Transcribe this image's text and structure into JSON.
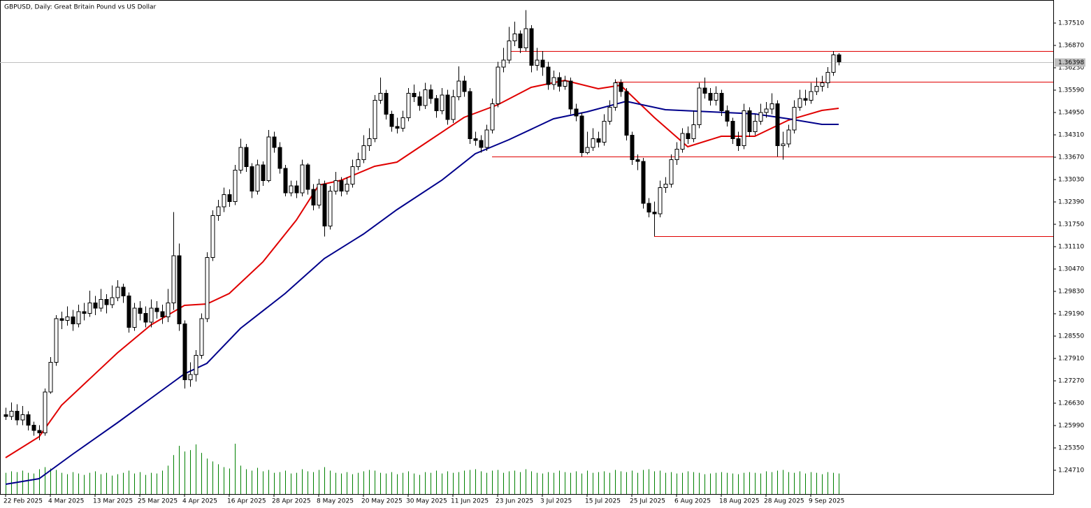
{
  "chart_data": {
    "type": "candlestick",
    "title": "GBPUSD, Daily:  Great Britain Pound vs US Dollar",
    "categories": [
      "22 Feb 2025",
      null,
      null,
      null,
      null,
      null,
      null,
      null,
      "4 Mar 2025",
      null,
      null,
      null,
      null,
      null,
      null,
      null,
      "13 Mar 2025",
      null,
      null,
      null,
      null,
      null,
      null,
      null,
      "25 Mar 2025",
      null,
      null,
      null,
      null,
      null,
      null,
      null,
      "4 Apr 2025",
      null,
      null,
      null,
      null,
      null,
      null,
      null,
      "16 Apr 2025",
      null,
      null,
      null,
      null,
      null,
      null,
      null,
      "28 Apr 2025",
      null,
      null,
      null,
      null,
      null,
      null,
      null,
      "8 May 2025",
      null,
      null,
      null,
      null,
      null,
      null,
      null,
      "20 May 2025",
      null,
      null,
      null,
      null,
      null,
      null,
      null,
      "30 May 2025",
      null,
      null,
      null,
      null,
      null,
      null,
      null,
      "11 Jun 2025",
      null,
      null,
      null,
      null,
      null,
      null,
      null,
      "23 Jun 2025",
      null,
      null,
      null,
      null,
      null,
      null,
      null,
      "3 Jul 2025",
      null,
      null,
      null,
      null,
      null,
      null,
      null,
      "15 Jul 2025",
      null,
      null,
      null,
      null,
      null,
      null,
      null,
      "25 Jul 2025",
      null,
      null,
      null,
      null,
      null,
      null,
      null,
      "6 Aug 2025",
      null,
      null,
      null,
      null,
      null,
      null,
      null,
      "18 Aug 2025",
      null,
      null,
      null,
      null,
      null,
      null,
      null,
      "28 Aug 2025",
      null,
      null,
      null,
      null,
      null,
      null,
      null,
      "9 Sep 2025",
      null,
      null,
      null,
      null,
      null
    ],
    "open": [
      1.263,
      1.2625,
      1.264,
      1.2615,
      1.263,
      1.26,
      1.2585,
      1.2578,
      1.2695,
      1.278,
      1.2905,
      1.29,
      1.291,
      1.289,
      1.2925,
      1.292,
      1.295,
      1.2935,
      1.296,
      1.2945,
      1.2965,
      1.2995,
      1.297,
      1.288,
      1.2935,
      1.292,
      1.2895,
      1.2935,
      1.2925,
      1.291,
      1.295,
      1.3085,
      1.289,
      1.273,
      1.2745,
      1.28,
      1.2905,
      1.308,
      1.32,
      1.3225,
      1.326,
      1.324,
      1.333,
      1.3395,
      1.334,
      1.327,
      1.3345,
      1.33,
      1.3425,
      1.3395,
      1.3335,
      1.3265,
      1.3285,
      1.3265,
      1.3345,
      1.3275,
      1.323,
      1.329,
      1.317,
      1.327,
      1.33,
      1.327,
      1.329,
      1.334,
      1.336,
      1.34,
      1.342,
      1.353,
      1.355,
      1.349,
      1.3455,
      1.345,
      1.348,
      1.355,
      1.354,
      1.3515,
      1.356,
      1.3535,
      1.35,
      1.3545,
      1.3475,
      1.354,
      1.3585,
      1.3555,
      1.342,
      1.3415,
      1.3395,
      1.3445,
      1.352,
      1.3625,
      1.3645,
      1.37,
      1.372,
      1.368,
      1.3735,
      1.363,
      1.3645,
      1.3625,
      1.3575,
      1.3595,
      1.357,
      1.3585,
      1.3505,
      1.3485,
      1.338,
      1.3395,
      1.342,
      1.341,
      1.347,
      1.351,
      1.358,
      1.3555,
      1.343,
      1.336,
      1.3355,
      1.3235,
      1.321,
      1.3205,
      1.328,
      1.329,
      1.336,
      1.339,
      1.3435,
      1.342,
      1.346,
      1.3565,
      1.355,
      1.353,
      1.355,
      1.35,
      1.347,
      1.342,
      1.34,
      1.35,
      1.344,
      1.347,
      1.3495,
      1.3505,
      1.352,
      1.34,
      1.3405,
      1.3445,
      1.351,
      1.3535,
      1.353,
      1.3555,
      1.357,
      1.358,
      1.361,
      1.366
    ],
    "high": [
      1.265,
      1.2665,
      1.266,
      1.2655,
      1.264,
      1.261,
      1.26,
      1.2705,
      1.2795,
      1.2915,
      1.2925,
      1.294,
      1.293,
      1.2945,
      1.295,
      1.2985,
      1.297,
      1.299,
      1.2975,
      1.3,
      1.3015,
      1.3005,
      1.298,
      1.295,
      1.2955,
      1.294,
      1.296,
      1.2955,
      1.2945,
      1.299,
      1.321,
      1.312,
      1.29,
      1.278,
      1.2815,
      1.292,
      1.3095,
      1.3215,
      1.3245,
      1.328,
      1.3275,
      1.3345,
      1.342,
      1.3405,
      1.335,
      1.336,
      1.3355,
      1.3445,
      1.344,
      1.341,
      1.3345,
      1.33,
      1.33,
      1.336,
      1.335,
      1.329,
      1.3305,
      1.33,
      1.3285,
      1.3325,
      1.331,
      1.331,
      1.336,
      1.338,
      1.343,
      1.345,
      1.3545,
      1.3595,
      1.356,
      1.35,
      1.348,
      1.35,
      1.3565,
      1.3575,
      1.3555,
      1.358,
      1.3575,
      1.3545,
      1.3565,
      1.356,
      1.356,
      1.3627,
      1.36,
      1.3565,
      1.344,
      1.343,
      1.346,
      1.3535,
      1.364,
      1.368,
      1.374,
      1.3755,
      1.373,
      1.3788,
      1.3745,
      1.368,
      1.3671,
      1.364,
      1.3615,
      1.361,
      1.36,
      1.3595,
      1.352,
      1.3495,
      1.344,
      1.345,
      1.344,
      1.349,
      1.353,
      1.359,
      1.359,
      1.3565,
      1.344,
      1.3375,
      1.3365,
      1.325,
      1.324,
      1.33,
      1.331,
      1.3375,
      1.341,
      1.345,
      1.3455,
      1.35,
      1.358,
      1.3595,
      1.3565,
      1.357,
      1.356,
      1.3515,
      1.348,
      1.344,
      1.352,
      1.351,
      1.349,
      1.352,
      1.3525,
      1.355,
      1.353,
      1.344,
      1.346,
      1.353,
      1.356,
      1.356,
      1.358,
      1.3595,
      1.36,
      1.3625,
      1.3671,
      1.3665
    ],
    "low": [
      1.2615,
      1.2615,
      1.26,
      1.26,
      1.2585,
      1.257,
      1.2557,
      1.257,
      1.269,
      1.277,
      1.2875,
      1.2885,
      1.287,
      1.288,
      1.29,
      1.291,
      1.2915,
      1.2925,
      1.292,
      1.2935,
      1.2955,
      1.295,
      1.2865,
      1.287,
      1.29,
      1.288,
      1.288,
      1.2905,
      1.289,
      1.2895,
      1.293,
      1.287,
      1.2705,
      1.271,
      1.2725,
      1.279,
      1.2895,
      1.307,
      1.3185,
      1.321,
      1.3225,
      1.323,
      1.332,
      1.3325,
      1.325,
      1.326,
      1.3285,
      1.3295,
      1.338,
      1.332,
      1.3255,
      1.3255,
      1.325,
      1.3255,
      1.326,
      1.3215,
      1.322,
      1.314,
      1.316,
      1.326,
      1.3255,
      1.326,
      1.328,
      1.333,
      1.335,
      1.3385,
      1.341,
      1.352,
      1.3475,
      1.344,
      1.3435,
      1.344,
      1.347,
      1.3525,
      1.35,
      1.3505,
      1.352,
      1.348,
      1.349,
      1.346,
      1.3465,
      1.353,
      1.354,
      1.3405,
      1.34,
      1.338,
      1.3385,
      1.3435,
      1.351,
      1.361,
      1.3635,
      1.3685,
      1.3665,
      1.367,
      1.361,
      1.3615,
      1.36,
      1.356,
      1.356,
      1.3555,
      1.356,
      1.349,
      1.347,
      1.3369,
      1.3375,
      1.3385,
      1.3395,
      1.34,
      1.346,
      1.35,
      1.354,
      1.3415,
      1.3345,
      1.333,
      1.322,
      1.3195,
      1.3141,
      1.3195,
      1.3265,
      1.328,
      1.3345,
      1.338,
      1.3405,
      1.341,
      1.345,
      1.3535,
      1.3515,
      1.3515,
      1.3485,
      1.3455,
      1.3405,
      1.3385,
      1.339,
      1.3425,
      1.343,
      1.346,
      1.348,
      1.349,
      1.3369,
      1.336,
      1.3395,
      1.3435,
      1.35,
      1.3515,
      1.352,
      1.3545,
      1.3555,
      1.3565,
      1.36,
      1.363
    ],
    "close": [
      1.2625,
      1.264,
      1.2615,
      1.263,
      1.26,
      1.2585,
      1.2578,
      1.2695,
      1.278,
      1.2905,
      1.29,
      1.291,
      1.289,
      1.2925,
      1.292,
      1.295,
      1.2935,
      1.296,
      1.2945,
      1.2965,
      1.2995,
      1.297,
      1.288,
      1.2935,
      1.292,
      1.2895,
      1.2935,
      1.2925,
      1.291,
      1.295,
      1.3085,
      1.289,
      1.273,
      1.2745,
      1.28,
      1.2905,
      1.308,
      1.32,
      1.3225,
      1.326,
      1.324,
      1.333,
      1.3395,
      1.334,
      1.327,
      1.3345,
      1.33,
      1.3425,
      1.3395,
      1.3335,
      1.3265,
      1.3285,
      1.3265,
      1.3345,
      1.3275,
      1.323,
      1.329,
      1.317,
      1.327,
      1.33,
      1.327,
      1.329,
      1.334,
      1.336,
      1.34,
      1.342,
      1.353,
      1.355,
      1.349,
      1.3455,
      1.345,
      1.348,
      1.355,
      1.354,
      1.3515,
      1.356,
      1.3535,
      1.35,
      1.3545,
      1.3475,
      1.354,
      1.3585,
      1.3555,
      1.342,
      1.3415,
      1.3395,
      1.3445,
      1.352,
      1.3625,
      1.3645,
      1.37,
      1.372,
      1.368,
      1.3735,
      1.363,
      1.3645,
      1.3625,
      1.3575,
      1.3595,
      1.357,
      1.3585,
      1.3505,
      1.3485,
      1.338,
      1.3395,
      1.342,
      1.341,
      1.347,
      1.351,
      1.358,
      1.3555,
      1.343,
      1.336,
      1.3355,
      1.3235,
      1.321,
      1.3205,
      1.328,
      1.329,
      1.336,
      1.339,
      1.3435,
      1.342,
      1.346,
      1.3565,
      1.355,
      1.353,
      1.355,
      1.35,
      1.347,
      1.342,
      1.34,
      1.35,
      1.344,
      1.347,
      1.3495,
      1.3505,
      1.352,
      1.34,
      1.3405,
      1.3445,
      1.351,
      1.3535,
      1.353,
      1.3555,
      1.357,
      1.358,
      1.361,
      1.366,
      1.364
    ],
    "volume": [
      30,
      32,
      31,
      33,
      30,
      29,
      35,
      38,
      36,
      34,
      30,
      28,
      31,
      29,
      27,
      30,
      32,
      28,
      30,
      26,
      28,
      30,
      33,
      29,
      31,
      27,
      30,
      29,
      33,
      40,
      55,
      68,
      60,
      62,
      70,
      58,
      50,
      46,
      42,
      38,
      36,
      71,
      40,
      35,
      33,
      37,
      32,
      34,
      30,
      31,
      33,
      29,
      30,
      35,
      32,
      31,
      34,
      38,
      33,
      30,
      29,
      31,
      28,
      30,
      32,
      34,
      33,
      30,
      29,
      31,
      28,
      30,
      32,
      29,
      27,
      31,
      30,
      33,
      29,
      32,
      30,
      31,
      33,
      34,
      35,
      32,
      30,
      33,
      34,
      30,
      32,
      33,
      31,
      35,
      32,
      30,
      29,
      31,
      30,
      33,
      31,
      30,
      32,
      29,
      33,
      30,
      31,
      32,
      30,
      34,
      32,
      31,
      33,
      30,
      34,
      35,
      32,
      33,
      30,
      31,
      29,
      30,
      32,
      31,
      30,
      28,
      29,
      30,
      31,
      30,
      29,
      28,
      30,
      31,
      30,
      29,
      32,
      31,
      33,
      34,
      31,
      30,
      32,
      29,
      31,
      30,
      28,
      31,
      30,
      29
    ],
    "volume_color": "#008000",
    "up_color": "#ffffff",
    "down_color": "#000000",
    "moving_averages": [
      {
        "color": "#e00000",
        "x": [
          0,
          6,
          10,
          20,
          26,
          32,
          36,
          40,
          46,
          52,
          56,
          60,
          66,
          70,
          76,
          82,
          88,
          94,
          100,
          106,
          110,
          116,
          122,
          128,
          134,
          140,
          146,
          149
        ],
        "values": [
          1.2507,
          1.2567,
          1.2657,
          1.2807,
          1.2887,
          1.2943,
          1.2947,
          1.2977,
          1.3067,
          1.3187,
          1.3287,
          1.3301,
          1.3341,
          1.3353,
          1.3417,
          1.3481,
          1.3517,
          1.3567,
          1.3587,
          1.3563,
          1.3573,
          1.3481,
          1.3397,
          1.3427,
          1.3427,
          1.3473,
          1.3501,
          1.3507
        ]
      },
      {
        "color": "#00008b",
        "x": [
          0,
          6,
          12,
          20,
          26,
          32,
          36,
          42,
          50,
          57,
          64,
          70,
          78,
          84,
          90,
          98,
          104,
          111,
          118,
          126,
          134,
          140,
          146,
          149
        ],
        "values": [
          1.2431,
          1.2447,
          1.2517,
          1.2607,
          1.2677,
          1.2747,
          1.2777,
          1.2877,
          1.2977,
          1.3077,
          1.3147,
          1.3217,
          1.3301,
          1.3377,
          1.3417,
          1.3477,
          1.3497,
          1.3527,
          1.3503,
          1.3497,
          1.3491,
          1.3477,
          1.3461,
          1.3461
        ]
      }
    ],
    "levels": [
      {
        "value": 1.3671,
        "start": 90
      },
      {
        "value": 1.3583,
        "start": 109
      },
      {
        "value": 1.3369,
        "start": 87
      },
      {
        "value": 1.3141,
        "start": 116
      }
    ],
    "level_color": "#e00000",
    "current_price": {
      "value": 1.36398,
      "label": "1.36398"
    },
    "ylim": [
      1.2403,
      1.3817
    ],
    "yticks": [
      {
        "value": 1.2471,
        "label": "1.24710"
      },
      {
        "value": 1.2535,
        "label": "1.25350"
      },
      {
        "value": 1.2599,
        "label": "1.25990"
      },
      {
        "value": 1.2663,
        "label": "1.26630"
      },
      {
        "value": 1.2727,
        "label": "1.27270"
      },
      {
        "value": 1.2791,
        "label": "1.27910"
      },
      {
        "value": 1.2855,
        "label": "1.28550"
      },
      {
        "value": 1.2919,
        "label": "1.29190"
      },
      {
        "value": 1.2983,
        "label": "1.29830"
      },
      {
        "value": 1.3047,
        "label": "1.30470"
      },
      {
        "value": 1.3111,
        "label": "1.31110"
      },
      {
        "value": 1.3175,
        "label": "1.31750"
      },
      {
        "value": 1.3239,
        "label": "1.32390"
      },
      {
        "value": 1.3303,
        "label": "1.33030"
      },
      {
        "value": 1.3367,
        "label": "1.33670"
      },
      {
        "value": 1.3431,
        "label": "1.34310"
      },
      {
        "value": 1.3495,
        "label": "1.34950"
      },
      {
        "value": 1.3559,
        "label": "1.35590"
      },
      {
        "value": 1.3623,
        "label": "1.36230"
      },
      {
        "value": 1.3687,
        "label": "1.36870"
      },
      {
        "value": 1.3751,
        "label": "1.37510"
      }
    ]
  }
}
